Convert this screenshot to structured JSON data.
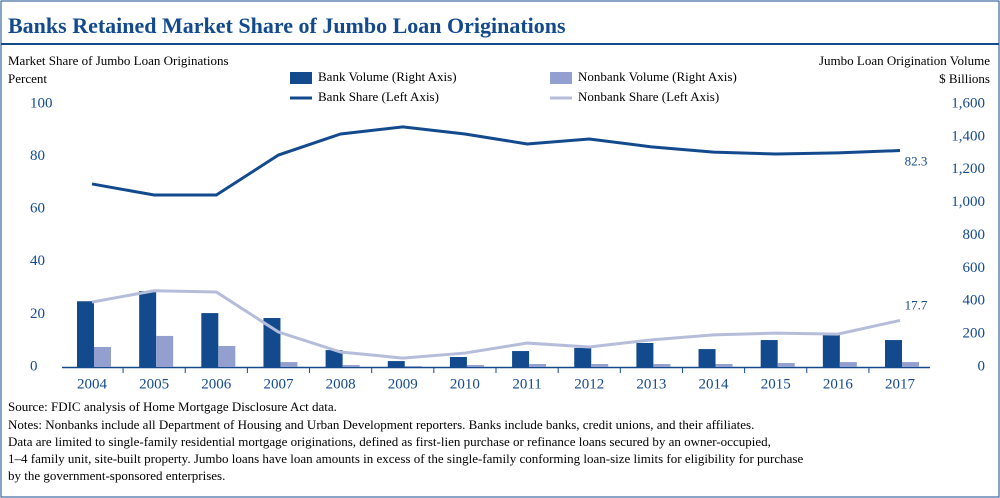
{
  "chart_data": {
    "type": "bar",
    "title": "Banks Retained Market Share of Jumbo Loan Originations",
    "y_label": [
      "Market Share of Jumbo Loan Originations",
      "Percent"
    ],
    "y2_label": [
      "Jumbo Loan Origination Volume",
      "$ Billions"
    ],
    "categories": [
      "2004",
      "2005",
      "2006",
      "2007",
      "2008",
      "2009",
      "2010",
      "2011",
      "2012",
      "2013",
      "2014",
      "2015",
      "2016",
      "2017"
    ],
    "series": [
      {
        "name": "Bank Volume (Right Axis)",
        "type": "bar",
        "axis": "y2",
        "color": "#134a8e",
        "values": [
          400,
          462,
          328,
          298,
          103,
          36,
          61,
          97,
          116,
          146,
          109,
          164,
          195,
          164
        ]
      },
      {
        "name": "Nonbank Volume (Right Axis)",
        "type": "bar",
        "axis": "y2",
        "color": "#939fcf",
        "values": [
          122,
          189,
          128,
          30,
          12,
          6,
          12,
          18,
          18,
          18,
          18,
          24,
          30,
          30
        ]
      },
      {
        "name": "Bank Share (Left Axis)",
        "type": "line",
        "color": "#134a8e",
        "values": [
          69.6,
          65.4,
          65.4,
          80.6,
          88.6,
          91.3,
          88.6,
          84.8,
          86.7,
          83.7,
          81.7,
          81,
          81.4,
          82.3
        ]
      },
      {
        "name": "Nonbank Share (Left Axis)",
        "type": "line",
        "color": "#b5bddb",
        "values": [
          24.7,
          29,
          28.5,
          13.3,
          5.7,
          3.4,
          5.3,
          9.1,
          7.6,
          10.3,
          12.2,
          12.9,
          12.5,
          17.7
        ]
      }
    ],
    "ylim": [
      0,
      100
    ],
    "yticks": [
      0,
      20,
      40,
      60,
      80,
      100
    ],
    "y2lim": [
      0,
      1600
    ],
    "y2ticks": [
      0,
      200,
      400,
      600,
      800,
      {
        "value": 1000,
        "label": "1,000"
      },
      {
        "value": 1200,
        "label": "1,200"
      },
      {
        "value": 1400,
        "label": "1,400"
      },
      {
        "value": 1600,
        "label": "1,600"
      }
    ],
    "source": "Source: FDIC analysis of Home Mortgage Disclosure Act data.",
    "notes": [
      "Notes: Nonbanks include all Department of Housing and Urban Development reporters. Banks include banks, credit unions, and their affiliates.",
      "Data are limited to single-family residential mortgage originations, defined as first-lien purchase or refinance loans secured by an owner-occupied,",
      "1–4 family unit, site-built property. Jumbo loans have loan amounts in excess of the single-family conforming loan-size limits for eligibility for purchase",
      "by the government-sponsored enterprises."
    ]
  }
}
